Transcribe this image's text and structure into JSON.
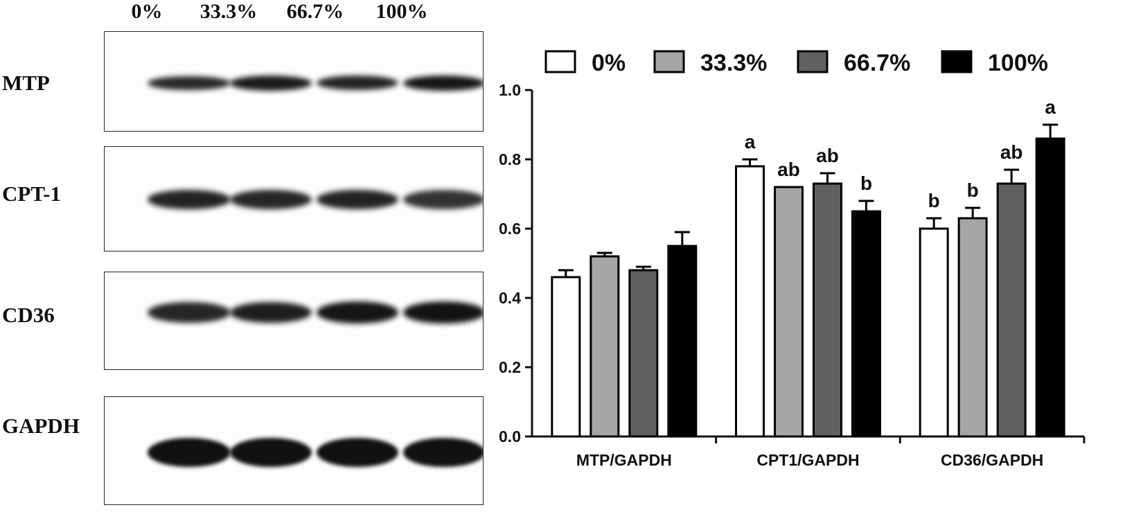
{
  "blot": {
    "lanes": [
      "0%",
      "33.3%",
      "66.7%",
      "100%"
    ],
    "rows": [
      {
        "label": "MTP",
        "intensity": [
          0.78,
          0.9,
          0.82,
          0.95
        ]
      },
      {
        "label": "CPT-1",
        "intensity": [
          0.82,
          0.8,
          0.82,
          0.7
        ]
      },
      {
        "label": "CD36",
        "intensity": [
          0.8,
          0.86,
          0.95,
          0.97
        ]
      },
      {
        "label": "GAPDH",
        "intensity": [
          1.0,
          1.0,
          1.0,
          1.0
        ]
      }
    ]
  },
  "chart_data": {
    "type": "bar",
    "categories": [
      "MTP/GAPDH",
      "CPT1/GAPDH",
      "CD36/GAPDH"
    ],
    "series": [
      {
        "name": "0%",
        "color": "#ffffff",
        "values": [
          0.46,
          0.78,
          0.6
        ],
        "errors": [
          0.02,
          0.02,
          0.03
        ],
        "letters": [
          "",
          "a",
          "b"
        ]
      },
      {
        "name": "33.3%",
        "color": "#a6a6a8",
        "values": [
          0.52,
          0.72,
          0.63
        ],
        "errors": [
          0.01,
          0.0,
          0.03
        ],
        "letters": [
          "",
          "ab",
          "b"
        ]
      },
      {
        "name": "66.7%",
        "color": "#606062",
        "values": [
          0.48,
          0.73,
          0.73
        ],
        "errors": [
          0.01,
          0.03,
          0.04
        ],
        "letters": [
          "",
          "ab",
          "ab"
        ]
      },
      {
        "name": "100%",
        "color": "#000000",
        "values": [
          0.55,
          0.65,
          0.86
        ],
        "errors": [
          0.04,
          0.03,
          0.04
        ],
        "letters": [
          "",
          "b",
          "a"
        ]
      }
    ],
    "ylim": [
      0,
      1.0
    ],
    "yticks": [
      "0.0",
      "0.2",
      "0.4",
      "0.6",
      "0.8",
      "1.0"
    ],
    "legend_position": "top",
    "grid": false
  }
}
